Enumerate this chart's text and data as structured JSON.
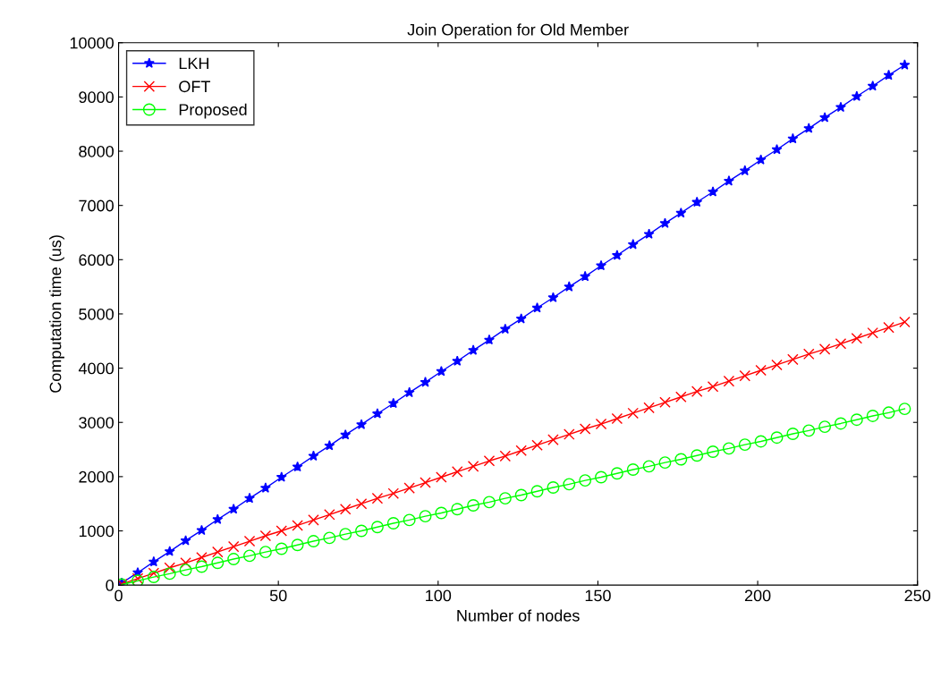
{
  "chart_data": {
    "type": "line",
    "title": "Join Operation for Old Member",
    "xlabel": "Number of nodes",
    "ylabel": "Computation time (us)",
    "x": [
      1,
      6,
      11,
      16,
      21,
      26,
      31,
      36,
      41,
      46,
      51,
      56,
      61,
      66,
      71,
      76,
      81,
      86,
      91,
      96,
      101,
      106,
      111,
      116,
      121,
      126,
      131,
      136,
      141,
      146,
      151,
      156,
      161,
      166,
      171,
      176,
      181,
      186,
      191,
      196,
      201,
      206,
      211,
      216,
      221,
      226,
      231,
      236,
      241,
      246
    ],
    "series": [
      {
        "name": "LKH",
        "color": "#0000ff",
        "marker": "star",
        "values": [
          40,
          230,
          430,
          620,
          820,
          1010,
          1210,
          1400,
          1600,
          1790,
          1990,
          2180,
          2380,
          2570,
          2770,
          2960,
          3160,
          3350,
          3550,
          3740,
          3940,
          4130,
          4330,
          4520,
          4720,
          4910,
          5110,
          5300,
          5500,
          5690,
          5890,
          6080,
          6280,
          6470,
          6670,
          6860,
          7060,
          7250,
          7450,
          7640,
          7840,
          8030,
          8230,
          8420,
          8620,
          8810,
          9010,
          9200,
          9400,
          9590
        ]
      },
      {
        "name": "OFT",
        "color": "#ff0000",
        "marker": "cross",
        "values": [
          20,
          120,
          220,
          320,
          410,
          510,
          610,
          710,
          810,
          910,
          1000,
          1100,
          1200,
          1300,
          1400,
          1500,
          1600,
          1690,
          1790,
          1890,
          1990,
          2090,
          2190,
          2290,
          2380,
          2480,
          2580,
          2680,
          2780,
          2880,
          2970,
          3070,
          3170,
          3270,
          3370,
          3470,
          3570,
          3660,
          3760,
          3860,
          3960,
          4060,
          4160,
          4260,
          4350,
          4450,
          4550,
          4650,
          4750,
          4850
        ]
      },
      {
        "name": "Proposed",
        "color": "#00ff00",
        "marker": "circle",
        "values": [
          10,
          80,
          150,
          210,
          280,
          340,
          410,
          480,
          540,
          610,
          670,
          740,
          810,
          870,
          940,
          1000,
          1070,
          1140,
          1200,
          1270,
          1330,
          1400,
          1470,
          1530,
          1600,
          1660,
          1730,
          1800,
          1860,
          1930,
          1990,
          2060,
          2130,
          2190,
          2260,
          2320,
          2390,
          2460,
          2520,
          2590,
          2650,
          2720,
          2790,
          2850,
          2920,
          2980,
          3050,
          3120,
          3180,
          3250
        ]
      }
    ],
    "xlim": [
      0,
      250
    ],
    "xticks": [
      0,
      50,
      100,
      150,
      200,
      250
    ],
    "ylim": [
      0,
      10000
    ],
    "yticks": [
      0,
      1000,
      2000,
      3000,
      4000,
      5000,
      6000,
      7000,
      8000,
      9000,
      10000
    ],
    "grid": false,
    "legend": "top left",
    "line_style": "solid"
  }
}
